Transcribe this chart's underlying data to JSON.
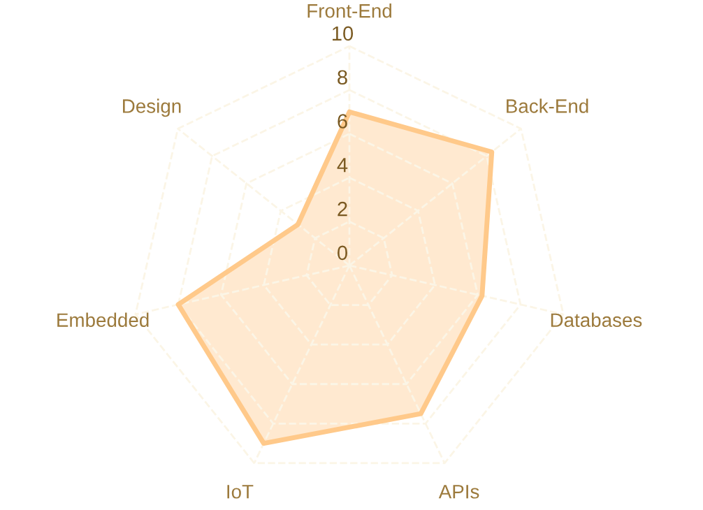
{
  "chart_data": {
    "type": "radar",
    "categories": [
      "Front-End",
      "Back-End",
      "Databases",
      "APIs",
      "IoT",
      "Embedded",
      "Design"
    ],
    "series": [
      {
        "color": "#ffc98a",
        "values": [
          7,
          8.3,
          6.2,
          7.5,
          9,
          8,
          3
        ]
      }
    ],
    "ylim": [
      0,
      10
    ],
    "yticks": [
      0,
      2,
      4,
      6,
      8,
      10
    ],
    "grid": true,
    "legend": false
  }
}
